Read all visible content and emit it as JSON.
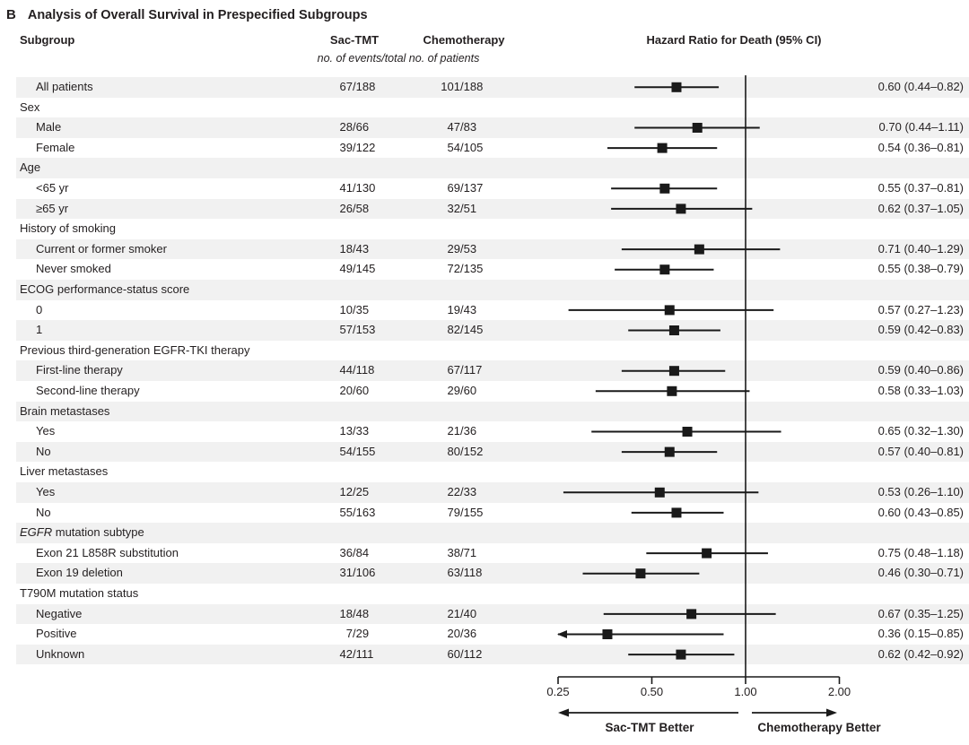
{
  "panel_label": "B",
  "title": "Analysis of Overall Survival in Prespecified Subgroups",
  "columns": {
    "subgroup": "Subgroup",
    "sac_tmt": "Sac-TMT",
    "chemotherapy": "Chemotherapy",
    "events_note": "no. of events/total no. of patients",
    "hazard_ratio": "Hazard Ratio for Death (95% CI)"
  },
  "chart_data": {
    "type": "scatter",
    "subtype": "forest-plot",
    "title": "Analysis of Overall Survival in Prespecified Subgroups",
    "x_axis": {
      "scale": "log2",
      "range": [
        0.25,
        2.0
      ],
      "ticks": [
        0.25,
        0.5,
        1.0,
        2.0
      ],
      "labels": [
        "0.25",
        "0.50",
        "1.00",
        "2.00"
      ],
      "reference_line": 1.0,
      "left_label": "Sac-TMT Better",
      "right_label": "Chemotherapy Better"
    },
    "rows": [
      {
        "kind": "data",
        "label": "All patients",
        "indent": 0,
        "sac_tmt": "67/188",
        "chemotherapy": "101/188",
        "hr": 0.6,
        "ci_lower": 0.44,
        "ci_upper": 0.82,
        "hr_label": "0.60 (0.44–0.82)"
      },
      {
        "kind": "category",
        "label": "Sex"
      },
      {
        "kind": "data",
        "label": "Male",
        "indent": 1,
        "sac_tmt": "28/66",
        "chemotherapy": "47/83",
        "hr": 0.7,
        "ci_lower": 0.44,
        "ci_upper": 1.11,
        "hr_label": "0.70 (0.44–1.11)"
      },
      {
        "kind": "data",
        "label": "Female",
        "indent": 1,
        "sac_tmt": "39/122",
        "chemotherapy": "54/105",
        "hr": 0.54,
        "ci_lower": 0.36,
        "ci_upper": 0.81,
        "hr_label": "0.54 (0.36–0.81)"
      },
      {
        "kind": "category",
        "label": "Age"
      },
      {
        "kind": "data",
        "label": "<65 yr",
        "indent": 1,
        "sac_tmt": "41/130",
        "chemotherapy": "69/137",
        "hr": 0.55,
        "ci_lower": 0.37,
        "ci_upper": 0.81,
        "hr_label": "0.55 (0.37–0.81)"
      },
      {
        "kind": "data",
        "label": "≥65 yr",
        "indent": 1,
        "sac_tmt": "26/58",
        "chemotherapy": "32/51",
        "hr": 0.62,
        "ci_lower": 0.37,
        "ci_upper": 1.05,
        "hr_label": "0.62 (0.37–1.05)"
      },
      {
        "kind": "category",
        "label": "History of smoking"
      },
      {
        "kind": "data",
        "label": "Current or former smoker",
        "indent": 1,
        "sac_tmt": "18/43",
        "chemotherapy": "29/53",
        "hr": 0.71,
        "ci_lower": 0.4,
        "ci_upper": 1.29,
        "hr_label": "0.71 (0.40–1.29)"
      },
      {
        "kind": "data",
        "label": "Never smoked",
        "indent": 1,
        "sac_tmt": "49/145",
        "chemotherapy": "72/135",
        "hr": 0.55,
        "ci_lower": 0.38,
        "ci_upper": 0.79,
        "hr_label": "0.55 (0.38–0.79)"
      },
      {
        "kind": "category",
        "label": "ECOG performance-status score"
      },
      {
        "kind": "data",
        "label": "0",
        "indent": 1,
        "sac_tmt": "10/35",
        "chemotherapy": "19/43",
        "hr": 0.57,
        "ci_lower": 0.27,
        "ci_upper": 1.23,
        "hr_label": "0.57 (0.27–1.23)"
      },
      {
        "kind": "data",
        "label": "1",
        "indent": 1,
        "sac_tmt": "57/153",
        "chemotherapy": "82/145",
        "hr": 0.59,
        "ci_lower": 0.42,
        "ci_upper": 0.83,
        "hr_label": "0.59 (0.42–0.83)"
      },
      {
        "kind": "category",
        "label": "Previous third-generation EGFR-TKI therapy"
      },
      {
        "kind": "data",
        "label": "First-line therapy",
        "indent": 1,
        "sac_tmt": "44/118",
        "chemotherapy": "67/117",
        "hr": 0.59,
        "ci_lower": 0.4,
        "ci_upper": 0.86,
        "hr_label": "0.59 (0.40–0.86)"
      },
      {
        "kind": "data",
        "label": "Second-line therapy",
        "indent": 1,
        "sac_tmt": "20/60",
        "chemotherapy": "29/60",
        "hr": 0.58,
        "ci_lower": 0.33,
        "ci_upper": 1.03,
        "hr_label": "0.58 (0.33–1.03)"
      },
      {
        "kind": "category",
        "label": "Brain metastases"
      },
      {
        "kind": "data",
        "label": "Yes",
        "indent": 1,
        "sac_tmt": "13/33",
        "chemotherapy": "21/36",
        "hr": 0.65,
        "ci_lower": 0.32,
        "ci_upper": 1.3,
        "hr_label": "0.65 (0.32–1.30)"
      },
      {
        "kind": "data",
        "label": "No",
        "indent": 1,
        "sac_tmt": "54/155",
        "chemotherapy": "80/152",
        "hr": 0.57,
        "ci_lower": 0.4,
        "ci_upper": 0.81,
        "hr_label": "0.57 (0.40–0.81)"
      },
      {
        "kind": "category",
        "label": "Liver metastases"
      },
      {
        "kind": "data",
        "label": "Yes",
        "indent": 1,
        "sac_tmt": "12/25",
        "chemotherapy": "22/33",
        "hr": 0.53,
        "ci_lower": 0.26,
        "ci_upper": 1.1,
        "hr_label": "0.53 (0.26–1.10)"
      },
      {
        "kind": "data",
        "label": "No",
        "indent": 1,
        "sac_tmt": "55/163",
        "chemotherapy": "79/155",
        "hr": 0.6,
        "ci_lower": 0.43,
        "ci_upper": 0.85,
        "hr_label": "0.60 (0.43–0.85)"
      },
      {
        "kind": "category",
        "label": "EGFR mutation subtype",
        "italic_words": 1
      },
      {
        "kind": "data",
        "label": "Exon 21 L858R substitution",
        "indent": 1,
        "sac_tmt": "36/84",
        "chemotherapy": "38/71",
        "hr": 0.75,
        "ci_lower": 0.48,
        "ci_upper": 1.18,
        "hr_label": "0.75 (0.48–1.18)"
      },
      {
        "kind": "data",
        "label": "Exon 19 deletion",
        "indent": 1,
        "sac_tmt": "31/106",
        "chemotherapy": "63/118",
        "hr": 0.46,
        "ci_lower": 0.3,
        "ci_upper": 0.71,
        "hr_label": "0.46 (0.30–0.71)"
      },
      {
        "kind": "category",
        "label": "T790M mutation status"
      },
      {
        "kind": "data",
        "label": "Negative",
        "indent": 1,
        "sac_tmt": "18/48",
        "chemotherapy": "21/40",
        "hr": 0.67,
        "ci_lower": 0.35,
        "ci_upper": 1.25,
        "hr_label": "0.67 (0.35–1.25)"
      },
      {
        "kind": "data",
        "label": "Positive",
        "indent": 1,
        "sac_tmt": "7/29",
        "chemotherapy": "20/36",
        "hr": 0.36,
        "ci_lower": 0.15,
        "ci_upper": 0.85,
        "hr_label": "0.36 (0.15–0.85)"
      },
      {
        "kind": "data",
        "label": "Unknown",
        "indent": 1,
        "sac_tmt": "42/111",
        "chemotherapy": "60/112",
        "hr": 0.62,
        "ci_lower": 0.42,
        "ci_upper": 0.92,
        "hr_label": "0.62 (0.42–0.92)"
      }
    ]
  }
}
